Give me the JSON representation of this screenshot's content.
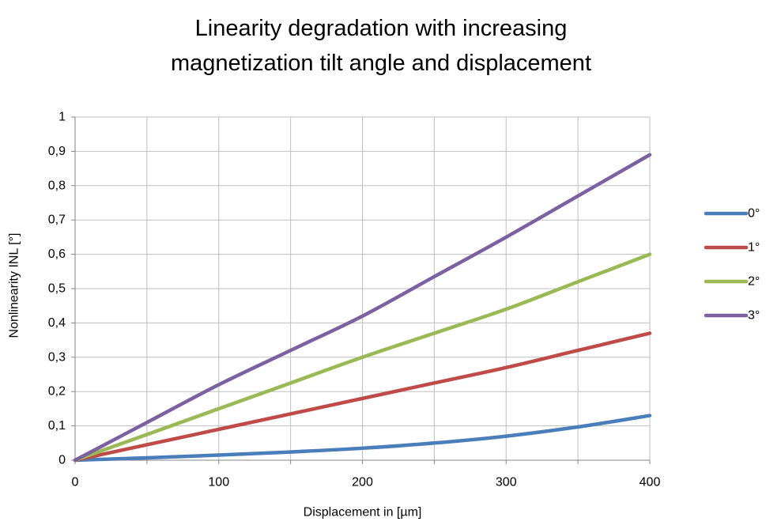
{
  "chart_data": {
    "type": "line",
    "title_lines": [
      "Linearity degradation with increasing",
      "magnetization tilt angle and displacement"
    ],
    "xlabel": "Displacement in [µm]",
    "ylabel": "Nonlinearity INL [°]",
    "xlim": [
      0,
      400
    ],
    "ylim": [
      0,
      1
    ],
    "x_ticks": [
      0,
      100,
      200,
      300,
      400
    ],
    "x_tick_labels": [
      "0",
      "100",
      "200",
      "300",
      "400"
    ],
    "x_grid_step": 50,
    "y_ticks": [
      0,
      0.1,
      0.2,
      0.3,
      0.4,
      0.5,
      0.6,
      0.7,
      0.8,
      0.9,
      1
    ],
    "y_tick_labels": [
      "0",
      "0,1",
      "0,2",
      "0,3",
      "0,4",
      "0,5",
      "0,6",
      "0,7",
      "0,8",
      "0,9",
      "1"
    ],
    "grid": true,
    "legend_position": "right",
    "x": [
      0,
      50,
      100,
      150,
      200,
      250,
      300,
      350,
      400
    ],
    "series": [
      {
        "name": "0°",
        "color": "#4a7ebb",
        "values": [
          0,
          0.007,
          0.015,
          0.024,
          0.035,
          0.05,
          0.07,
          0.097,
          0.13
        ]
      },
      {
        "name": "1°",
        "color": "#be4b48",
        "values": [
          0,
          0.045,
          0.09,
          0.135,
          0.18,
          0.225,
          0.27,
          0.32,
          0.37
        ]
      },
      {
        "name": "2°",
        "color": "#98b954",
        "values": [
          0,
          0.075,
          0.15,
          0.225,
          0.3,
          0.37,
          0.44,
          0.52,
          0.6
        ]
      },
      {
        "name": "3°",
        "color": "#7d60a0",
        "values": [
          0,
          0.11,
          0.22,
          0.32,
          0.42,
          0.535,
          0.65,
          0.77,
          0.89
        ]
      }
    ]
  }
}
